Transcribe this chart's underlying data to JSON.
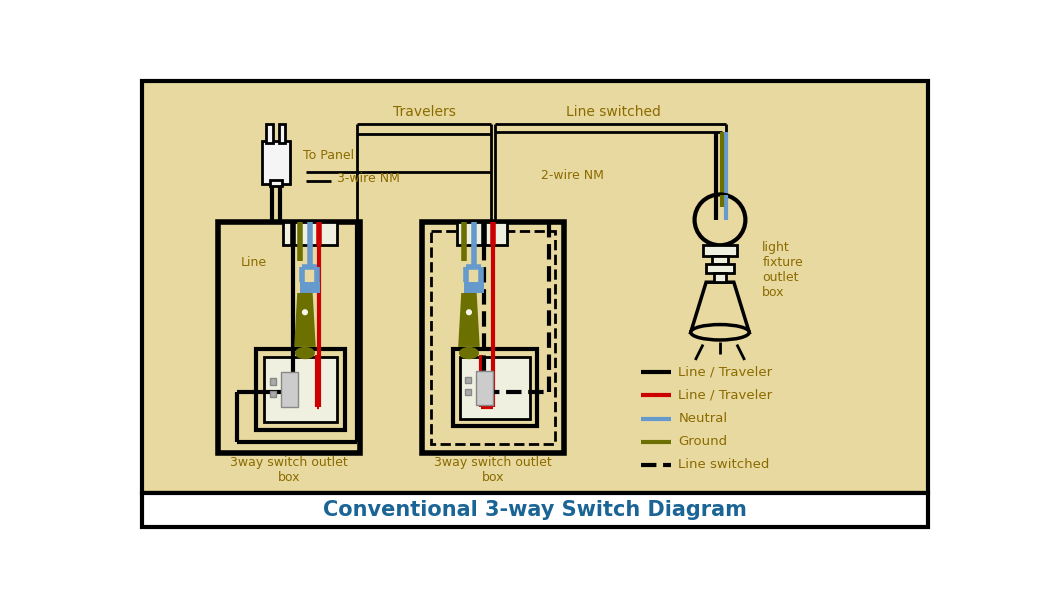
{
  "bg_color": "#E8D9A0",
  "title": "Conventional 3-way Switch Diagram",
  "title_color": "#1a6496",
  "title_fontsize": 15,
  "label_color": "#8B6B00",
  "wire_black": "#000000",
  "wire_red": "#CC0000",
  "wire_blue": "#6699CC",
  "wire_olive": "#6B7000",
  "travelers_label": "Travelers",
  "line_switched_label": "Line switched",
  "to_panel_label": "To Panel",
  "wire_nm3_label": "3-wire NM",
  "wire_nm2_label": "2-wire NM",
  "line_label": "Line",
  "box1_label": "3way switch outlet\nbox",
  "box2_label": "3way switch outlet\nbox",
  "fixture_label": "light\nfixture\noutlet\nbox",
  "legend_items": [
    {
      "color": "#000000",
      "label": "Line / Traveler",
      "style": "solid"
    },
    {
      "color": "#CC0000",
      "label": "Line / Traveler",
      "style": "solid"
    },
    {
      "color": "#6699CC",
      "label": "Neutral",
      "style": "solid"
    },
    {
      "color": "#6B7000",
      "label": "Ground",
      "style": "solid"
    },
    {
      "color": "#000000",
      "label": "Line switched",
      "style": "dashed"
    }
  ]
}
